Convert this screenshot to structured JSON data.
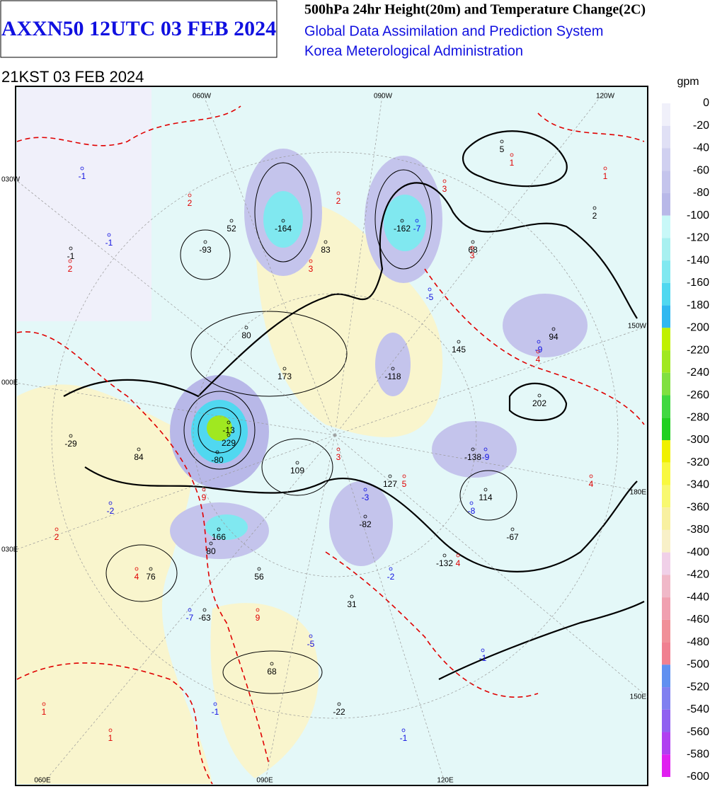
{
  "header": {
    "title": "AXXN50 12UTC 03 FEB 2024",
    "product": "500hPa 24hr Height(20m) and Temperature Change(2C)",
    "system": "Global Data Assimilation and Prediction System",
    "agency": "Korea Meterological Administration",
    "valid_time": "21KST 03 FEB 2024"
  },
  "colorbar": {
    "unit": "gpm",
    "levels": [
      0,
      -20,
      -40,
      -60,
      -80,
      -100,
      -120,
      -140,
      -160,
      -180,
      -200,
      -220,
      -240,
      -260,
      -280,
      -300,
      -320,
      -340,
      -360,
      -380,
      -400,
      -420,
      -440,
      -460,
      -480,
      -500,
      -520,
      -540,
      -560,
      -580,
      -600
    ],
    "colors": [
      "#f0f0fa",
      "#e0e0f5",
      "#d0d0f0",
      "#c4c4ec",
      "#b8b8e8",
      "#c8f8f8",
      "#a8f0f0",
      "#80e8f0",
      "#50d8f0",
      "#30b8f0",
      "#c0f000",
      "#a0e820",
      "#80e040",
      "#40d840",
      "#20d020",
      "#f0f000",
      "#f8f840",
      "#f8f870",
      "#f8f0a0",
      "#f8f0c8",
      "#f0d0e8",
      "#f0b8c8",
      "#f0a0b0",
      "#f09098",
      "#f08090",
      "#6090f0",
      "#8080f0",
      "#9060f0",
      "#b040f0",
      "#e020f0"
    ]
  },
  "map": {
    "geo_labels": [
      "060W",
      "090W",
      "120W",
      "030W",
      "150W",
      "000E",
      "180E",
      "030E",
      "150E",
      "060E",
      "090E",
      "120E"
    ],
    "height_change": [
      5,
      2,
      52,
      -164,
      -162,
      83,
      68,
      -93,
      -1,
      80,
      145,
      94,
      173,
      -118,
      202,
      -13,
      229,
      -29,
      84,
      -80,
      109,
      -138,
      127,
      114,
      -82,
      166,
      80,
      -67,
      76,
      56,
      -132,
      31,
      -63,
      68,
      -22
    ],
    "temp_change_warm": [
      1,
      1,
      2,
      2,
      3,
      3,
      3,
      4,
      3,
      5,
      4,
      9,
      2,
      4,
      4,
      9,
      1,
      1,
      2
    ],
    "temp_change_cold": [
      -1,
      -1,
      -5,
      -9,
      -7,
      -9,
      -2,
      -3,
      -8,
      -2,
      -5,
      -7,
      -1,
      -1,
      -1
    ]
  }
}
